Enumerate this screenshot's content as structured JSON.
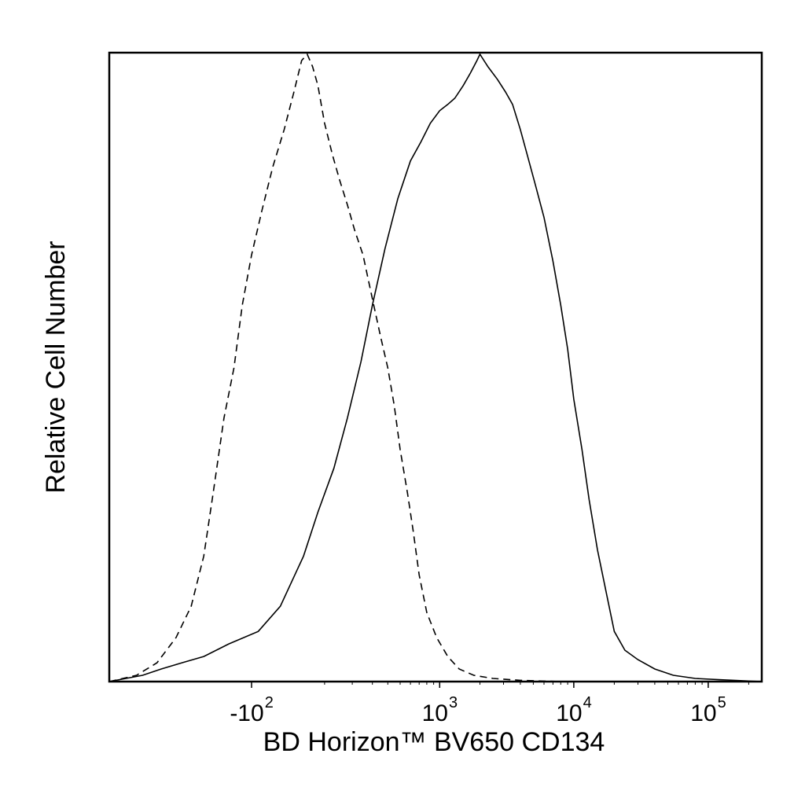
{
  "chart_data": {
    "type": "line",
    "title": "",
    "xlabel": "BD Horizon™ BV650 CD134",
    "ylabel": "Relative Cell Number",
    "x_scale": "biexponential",
    "x_ticks": [
      {
        "base": "-10",
        "exp": "2",
        "value": -100
      },
      {
        "base": "10",
        "exp": "3",
        "value": 1000
      },
      {
        "base": "10",
        "exp": "4",
        "value": 10000
      },
      {
        "base": "10",
        "exp": "5",
        "value": 100000
      }
    ],
    "x_range": [
      -1600,
      250000
    ],
    "y_range": [
      0,
      1
    ],
    "y_ticks_shown": false,
    "grid": false,
    "legend": "none",
    "series": [
      {
        "style": "dashed",
        "color": "#000000",
        "points": [
          [
            -1600,
            0.0
          ],
          [
            -1000,
            0.01
          ],
          [
            -700,
            0.03
          ],
          [
            -500,
            0.07
          ],
          [
            -380,
            0.12
          ],
          [
            -300,
            0.2
          ],
          [
            -250,
            0.3
          ],
          [
            -200,
            0.42
          ],
          [
            -160,
            0.5
          ],
          [
            -130,
            0.6
          ],
          [
            -100,
            0.68
          ],
          [
            -70,
            0.75
          ],
          [
            -40,
            0.82
          ],
          [
            -10,
            0.88
          ],
          [
            15,
            0.94
          ],
          [
            35,
            0.99
          ],
          [
            50,
            1.0
          ],
          [
            65,
            0.98
          ],
          [
            80,
            0.95
          ],
          [
            100,
            0.89
          ],
          [
            125,
            0.84
          ],
          [
            150,
            0.8
          ],
          [
            180,
            0.76
          ],
          [
            210,
            0.72
          ],
          [
            250,
            0.68
          ],
          [
            300,
            0.61
          ],
          [
            350,
            0.55
          ],
          [
            400,
            0.5
          ],
          [
            450,
            0.44
          ],
          [
            500,
            0.37
          ],
          [
            570,
            0.3
          ],
          [
            630,
            0.24
          ],
          [
            700,
            0.17
          ],
          [
            800,
            0.11
          ],
          [
            950,
            0.07
          ],
          [
            1150,
            0.04
          ],
          [
            1400,
            0.02
          ],
          [
            1800,
            0.01
          ],
          [
            2500,
            0.005
          ],
          [
            4000,
            0.002
          ],
          [
            8000,
            0.0
          ]
        ]
      },
      {
        "style": "solid",
        "color": "#000000",
        "points": [
          [
            -1600,
            0.0
          ],
          [
            -1200,
            0.005
          ],
          [
            -900,
            0.01
          ],
          [
            -650,
            0.02
          ],
          [
            -450,
            0.03
          ],
          [
            -300,
            0.04
          ],
          [
            -180,
            0.06
          ],
          [
            -80,
            0.08
          ],
          [
            -20,
            0.12
          ],
          [
            40,
            0.2
          ],
          [
            80,
            0.27
          ],
          [
            130,
            0.34
          ],
          [
            180,
            0.42
          ],
          [
            240,
            0.51
          ],
          [
            300,
            0.6
          ],
          [
            380,
            0.69
          ],
          [
            480,
            0.77
          ],
          [
            600,
            0.83
          ],
          [
            720,
            0.86
          ],
          [
            850,
            0.89
          ],
          [
            1000,
            0.91
          ],
          [
            1150,
            0.92
          ],
          [
            1300,
            0.93
          ],
          [
            1500,
            0.95
          ],
          [
            1700,
            0.97
          ],
          [
            1900,
            0.99
          ],
          [
            2000,
            1.0
          ],
          [
            2300,
            0.98
          ],
          [
            2700,
            0.96
          ],
          [
            3100,
            0.94
          ],
          [
            3500,
            0.92
          ],
          [
            4000,
            0.88
          ],
          [
            4500,
            0.84
          ],
          [
            5200,
            0.79
          ],
          [
            6000,
            0.74
          ],
          [
            7000,
            0.67
          ],
          [
            8000,
            0.6
          ],
          [
            9000,
            0.53
          ],
          [
            10000,
            0.45
          ],
          [
            11500,
            0.37
          ],
          [
            13000,
            0.29
          ],
          [
            15000,
            0.21
          ],
          [
            17500,
            0.14
          ],
          [
            20000,
            0.08
          ],
          [
            24000,
            0.05
          ],
          [
            30000,
            0.035
          ],
          [
            40000,
            0.02
          ],
          [
            55000,
            0.01
          ],
          [
            80000,
            0.005
          ],
          [
            120000,
            0.003
          ],
          [
            250000,
            0.0
          ]
        ]
      }
    ]
  }
}
